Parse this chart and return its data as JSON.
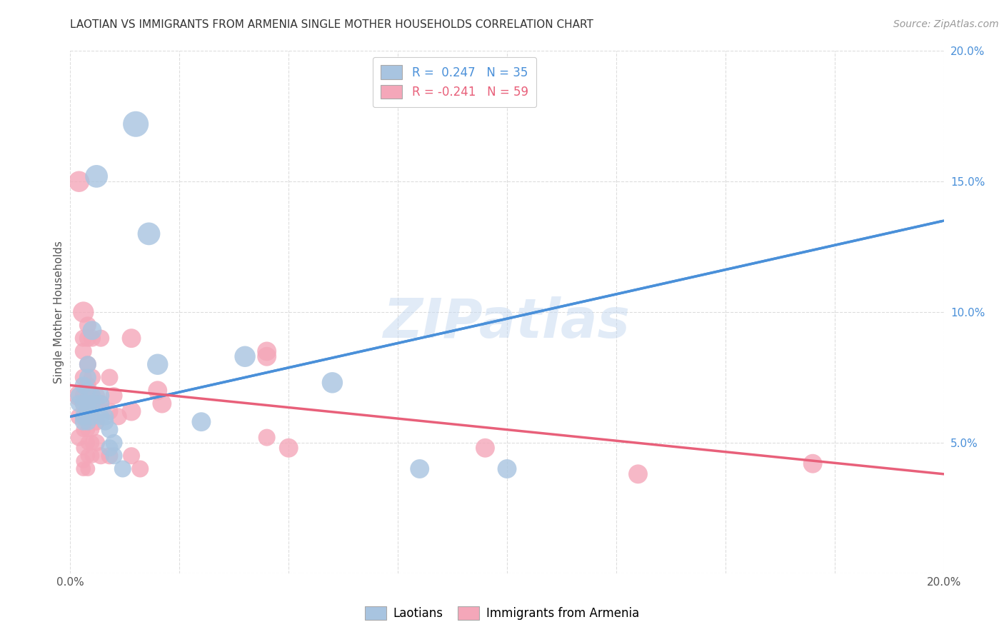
{
  "title": "LAOTIAN VS IMMIGRANTS FROM ARMENIA SINGLE MOTHER HOUSEHOLDS CORRELATION CHART",
  "source": "Source: ZipAtlas.com",
  "ylabel": "Single Mother Households",
  "xlim": [
    0.0,
    0.2
  ],
  "ylim": [
    0.0,
    0.2
  ],
  "watermark": "ZIPatlas",
  "blue_color": "#a8c4e0",
  "pink_color": "#f4a7b9",
  "blue_line_color": "#4a90d9",
  "pink_line_color": "#e8607a",
  "blue_scatter": [
    [
      0.002,
      0.068
    ],
    [
      0.002,
      0.065
    ],
    [
      0.003,
      0.072
    ],
    [
      0.003,
      0.065
    ],
    [
      0.003,
      0.06
    ],
    [
      0.003,
      0.058
    ],
    [
      0.004,
      0.08
    ],
    [
      0.004,
      0.075
    ],
    [
      0.004,
      0.07
    ],
    [
      0.004,
      0.065
    ],
    [
      0.004,
      0.063
    ],
    [
      0.004,
      0.058
    ],
    [
      0.005,
      0.093
    ],
    [
      0.005,
      0.068
    ],
    [
      0.005,
      0.065
    ],
    [
      0.005,
      0.06
    ],
    [
      0.006,
      0.152
    ],
    [
      0.007,
      0.068
    ],
    [
      0.007,
      0.065
    ],
    [
      0.007,
      0.06
    ],
    [
      0.008,
      0.06
    ],
    [
      0.008,
      0.058
    ],
    [
      0.009,
      0.055
    ],
    [
      0.009,
      0.048
    ],
    [
      0.01,
      0.05
    ],
    [
      0.01,
      0.045
    ],
    [
      0.012,
      0.04
    ],
    [
      0.015,
      0.172
    ],
    [
      0.018,
      0.13
    ],
    [
      0.02,
      0.08
    ],
    [
      0.03,
      0.058
    ],
    [
      0.04,
      0.083
    ],
    [
      0.06,
      0.073
    ],
    [
      0.08,
      0.04
    ],
    [
      0.1,
      0.04
    ]
  ],
  "pink_scatter": [
    [
      0.002,
      0.068
    ],
    [
      0.002,
      0.06
    ],
    [
      0.002,
      0.052
    ],
    [
      0.002,
      0.15
    ],
    [
      0.003,
      0.1
    ],
    [
      0.003,
      0.09
    ],
    [
      0.003,
      0.085
    ],
    [
      0.003,
      0.075
    ],
    [
      0.003,
      0.068
    ],
    [
      0.003,
      0.065
    ],
    [
      0.003,
      0.06
    ],
    [
      0.003,
      0.055
    ],
    [
      0.003,
      0.048
    ],
    [
      0.003,
      0.043
    ],
    [
      0.003,
      0.04
    ],
    [
      0.004,
      0.095
    ],
    [
      0.004,
      0.09
    ],
    [
      0.004,
      0.08
    ],
    [
      0.004,
      0.072
    ],
    [
      0.004,
      0.068
    ],
    [
      0.004,
      0.065
    ],
    [
      0.004,
      0.06
    ],
    [
      0.004,
      0.055
    ],
    [
      0.004,
      0.05
    ],
    [
      0.004,
      0.045
    ],
    [
      0.004,
      0.04
    ],
    [
      0.005,
      0.09
    ],
    [
      0.005,
      0.075
    ],
    [
      0.005,
      0.068
    ],
    [
      0.005,
      0.063
    ],
    [
      0.005,
      0.06
    ],
    [
      0.005,
      0.055
    ],
    [
      0.005,
      0.05
    ],
    [
      0.005,
      0.045
    ],
    [
      0.006,
      0.068
    ],
    [
      0.006,
      0.058
    ],
    [
      0.006,
      0.065
    ],
    [
      0.006,
      0.05
    ],
    [
      0.007,
      0.09
    ],
    [
      0.007,
      0.065
    ],
    [
      0.007,
      0.045
    ],
    [
      0.009,
      0.075
    ],
    [
      0.009,
      0.062
    ],
    [
      0.009,
      0.045
    ],
    [
      0.01,
      0.068
    ],
    [
      0.011,
      0.06
    ],
    [
      0.014,
      0.09
    ],
    [
      0.014,
      0.062
    ],
    [
      0.014,
      0.045
    ],
    [
      0.016,
      0.04
    ],
    [
      0.02,
      0.07
    ],
    [
      0.021,
      0.065
    ],
    [
      0.045,
      0.085
    ],
    [
      0.045,
      0.083
    ],
    [
      0.045,
      0.052
    ],
    [
      0.05,
      0.048
    ],
    [
      0.095,
      0.048
    ],
    [
      0.13,
      0.038
    ],
    [
      0.17,
      0.042
    ]
  ],
  "blue_sizes": [
    20,
    20,
    20,
    20,
    20,
    20,
    20,
    20,
    20,
    20,
    20,
    20,
    25,
    20,
    20,
    20,
    35,
    20,
    20,
    20,
    20,
    20,
    20,
    20,
    20,
    20,
    20,
    45,
    35,
    30,
    25,
    30,
    30,
    25,
    25
  ],
  "pink_sizes": [
    30,
    20,
    20,
    30,
    30,
    20,
    20,
    20,
    20,
    20,
    15,
    15,
    15,
    15,
    15,
    20,
    20,
    20,
    20,
    15,
    15,
    15,
    15,
    15,
    15,
    15,
    20,
    20,
    20,
    20,
    15,
    15,
    15,
    15,
    20,
    20,
    20,
    20,
    20,
    20,
    20,
    20,
    20,
    20,
    20,
    20,
    25,
    25,
    20,
    20,
    25,
    25,
    25,
    25,
    20,
    25,
    25,
    25,
    25
  ],
  "background_color": "#ffffff",
  "grid_color": "#dddddd",
  "blue_trend": [
    0.0,
    0.2,
    0.06,
    0.135
  ],
  "pink_trend": [
    0.0,
    0.2,
    0.072,
    0.038
  ]
}
